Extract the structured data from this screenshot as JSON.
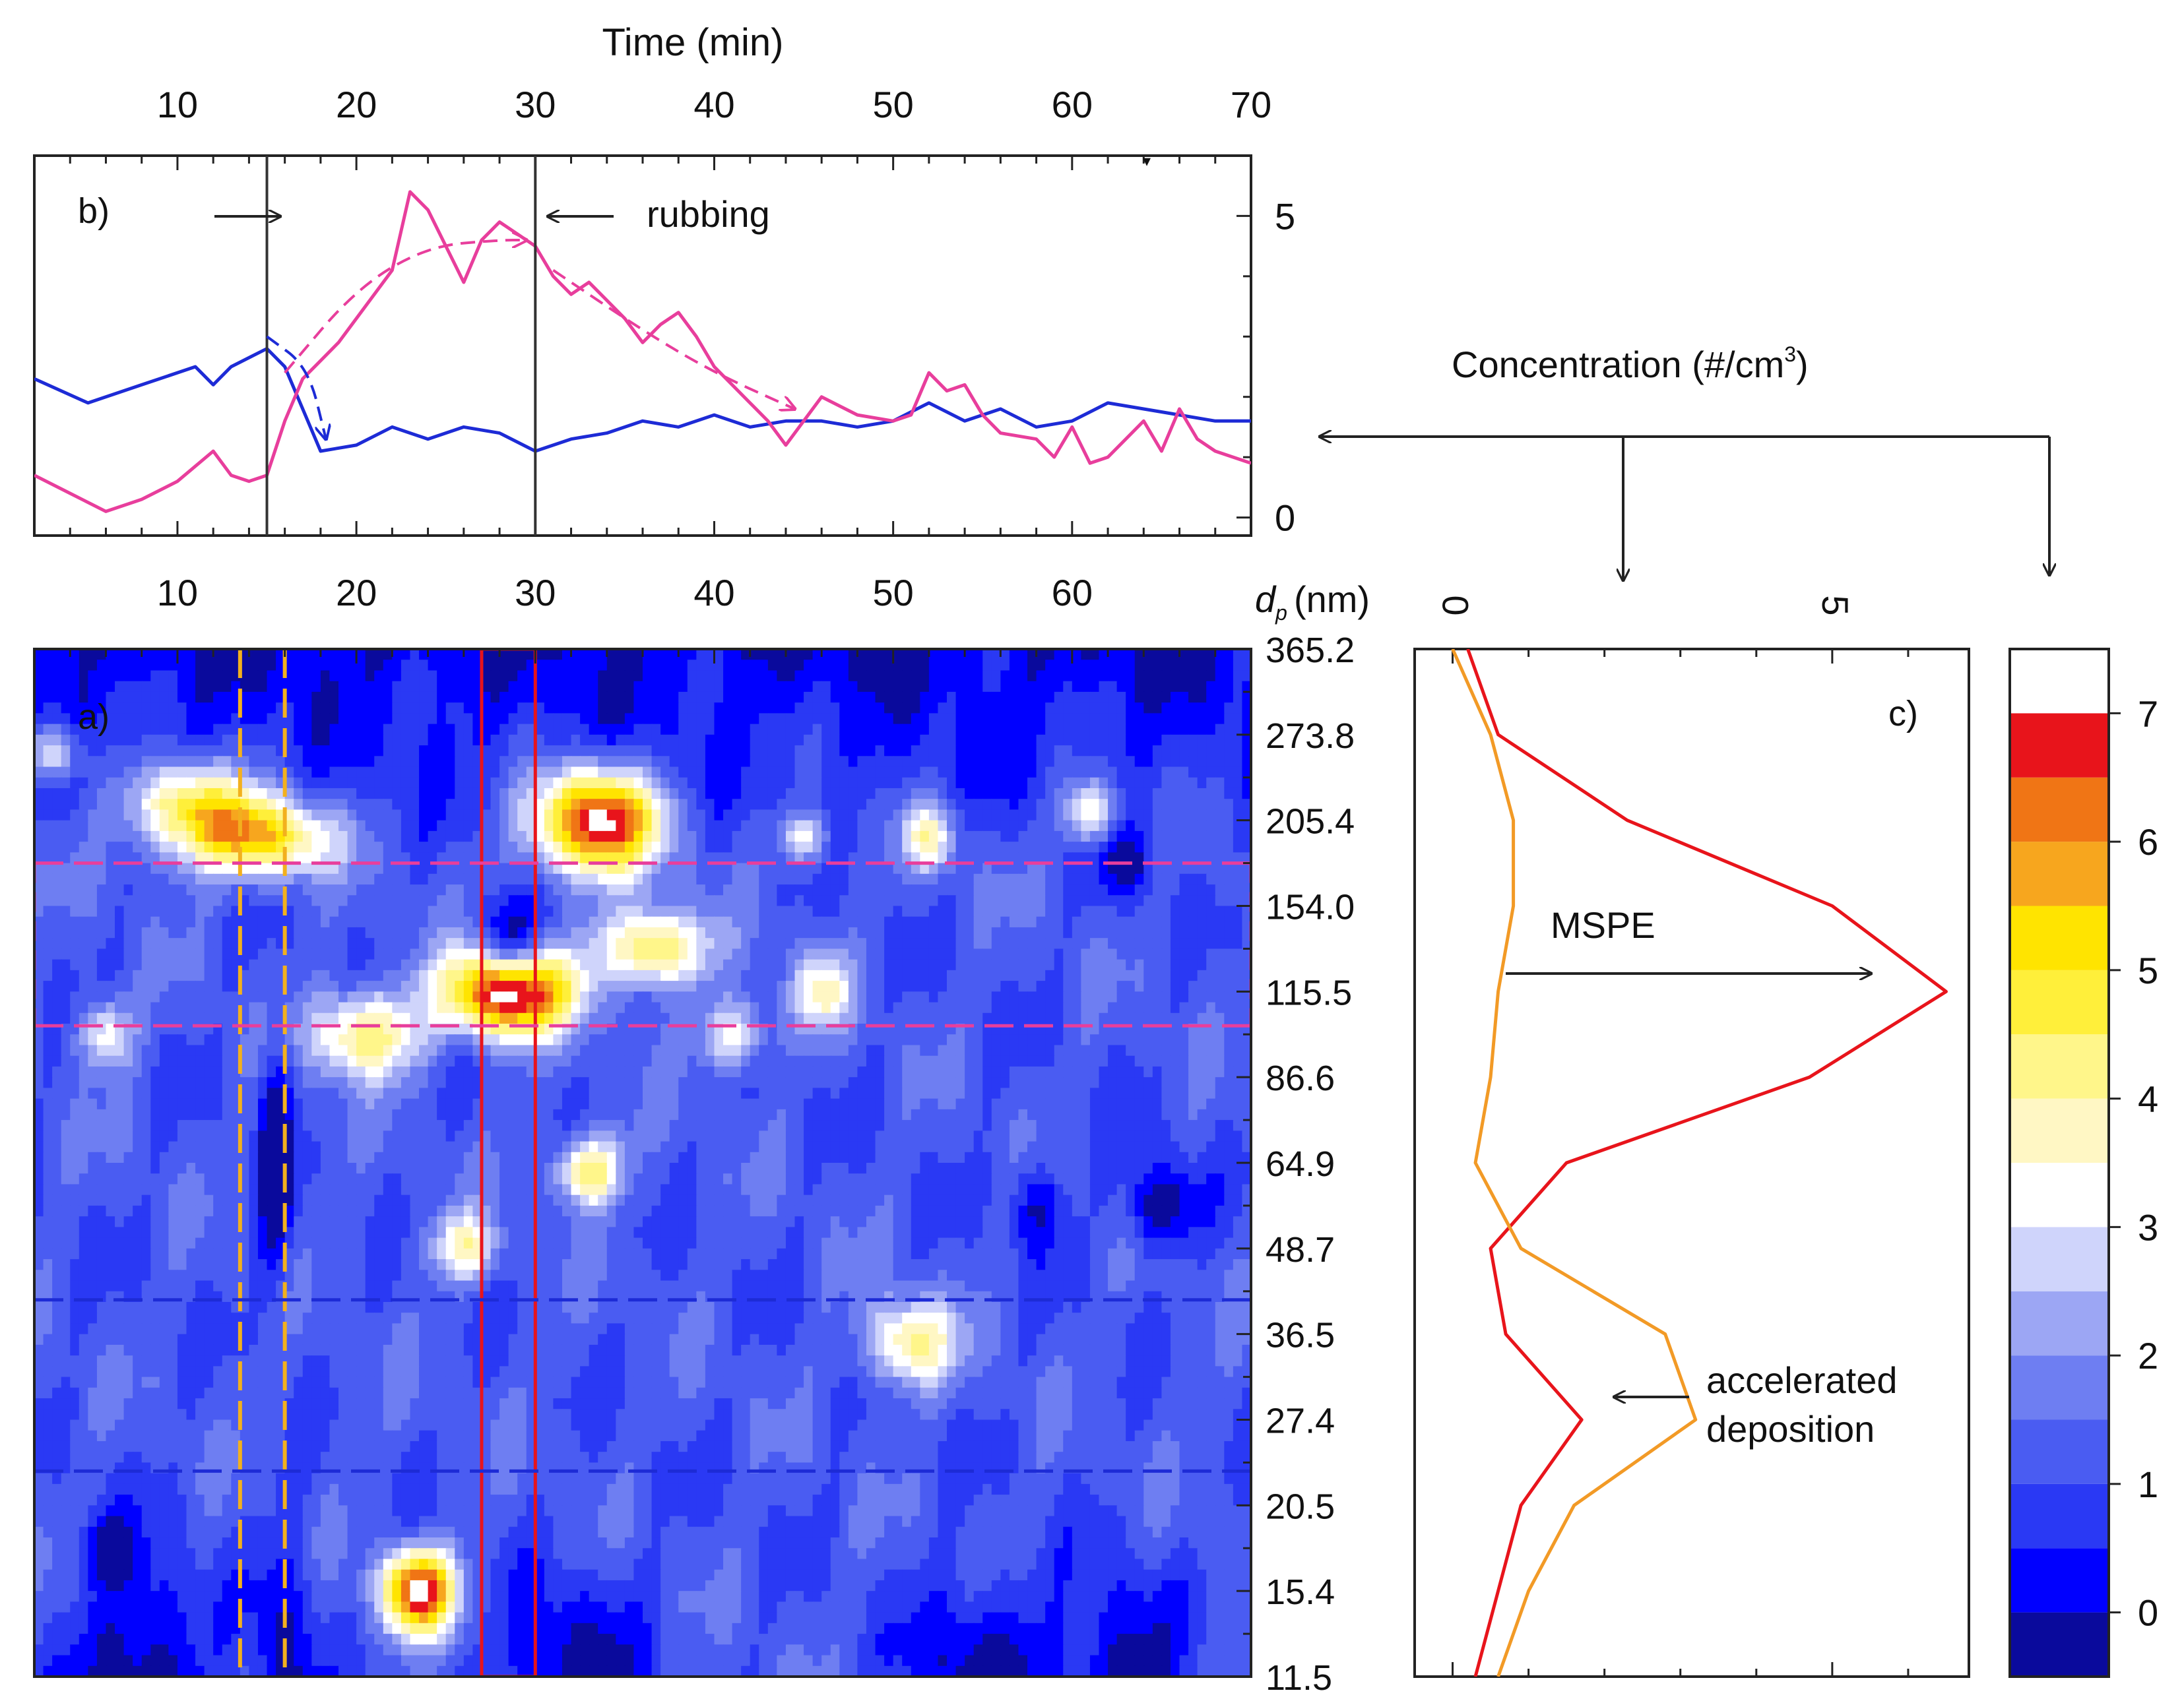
{
  "figure": {
    "top_axis_label": "Time (min)",
    "time_ticks": [
      "10",
      "20",
      "30",
      "40",
      "50",
      "60",
      "70"
    ],
    "dp_label": "d",
    "dp_sub": "p",
    "dp_unit": "(nm)",
    "concentration_label": "Concentration (#/cm",
    "concentration_sup": "3",
    "concentration_close": ")"
  },
  "colors": {
    "pink": "#e83e9c",
    "blue_line": "#1d2bd6",
    "red": "#e8141b",
    "orange": "#f29a26",
    "gold": "#f2b01e"
  },
  "colorbar": {
    "levels": [
      {
        "lo": -0.5,
        "hi": 0,
        "color": "#0a0a9c"
      },
      {
        "lo": 0,
        "hi": 0.5,
        "color": "#0000ff"
      },
      {
        "lo": 0.5,
        "hi": 1,
        "color": "#2a39f4"
      },
      {
        "lo": 1,
        "hi": 1.5,
        "color": "#4a5cf2"
      },
      {
        "lo": 1.5,
        "hi": 2,
        "color": "#6e7ef2"
      },
      {
        "lo": 2,
        "hi": 2.5,
        "color": "#9ca6f4"
      },
      {
        "lo": 2.5,
        "hi": 3,
        "color": "#cfd4fb"
      },
      {
        "lo": 3,
        "hi": 3.5,
        "color": "#ffffff"
      },
      {
        "lo": 3.5,
        "hi": 4,
        "color": "#fff7c4"
      },
      {
        "lo": 4,
        "hi": 4.5,
        "color": "#fff68a"
      },
      {
        "lo": 4.5,
        "hi": 5,
        "color": "#ffef3a"
      },
      {
        "lo": 5,
        "hi": 5.5,
        "color": "#ffe400"
      },
      {
        "lo": 5.5,
        "hi": 6,
        "color": "#f7a61e"
      },
      {
        "lo": 6,
        "hi": 6.5,
        "color": "#f07515"
      },
      {
        "lo": 6.5,
        "hi": 7,
        "color": "#e8141b"
      },
      {
        "lo": 7,
        "hi": 7.5,
        "color": "#ffffff"
      }
    ],
    "tick_labels": [
      "0",
      "1",
      "2",
      "3",
      "4",
      "5",
      "6",
      "7"
    ]
  },
  "chart_data": [
    {
      "type": "line",
      "panel_label": "b)",
      "xlabel": "Time (min)",
      "xlim": [
        2,
        70
      ],
      "ylim": [
        -0.3,
        6
      ],
      "y_ticks": [
        "0",
        "5"
      ],
      "series": [
        {
          "name": "blue",
          "x": [
            2,
            5,
            8,
            11,
            12,
            13,
            15,
            16,
            17,
            18,
            20,
            22,
            24,
            26,
            28,
            30,
            32,
            34,
            36,
            38,
            40,
            42,
            44,
            46,
            48,
            50,
            52,
            54,
            56,
            58,
            60,
            62,
            64,
            66,
            68,
            70
          ],
          "values": [
            2.3,
            1.9,
            2.2,
            2.5,
            2.2,
            2.5,
            2.8,
            2.5,
            1.8,
            1.1,
            1.2,
            1.5,
            1.3,
            1.5,
            1.4,
            1.1,
            1.3,
            1.4,
            1.6,
            1.5,
            1.7,
            1.5,
            1.6,
            1.6,
            1.5,
            1.6,
            1.9,
            1.6,
            1.8,
            1.5,
            1.6,
            1.9,
            1.8,
            1.7,
            1.6,
            1.6
          ]
        },
        {
          "name": "pink",
          "x": [
            2,
            4,
            6,
            8,
            10,
            12,
            13,
            14,
            15,
            16,
            17,
            18,
            19,
            20,
            22,
            23,
            24,
            25,
            26,
            27,
            28,
            29,
            30,
            31,
            32,
            33,
            34,
            35,
            36,
            37,
            38,
            39,
            40,
            41,
            42,
            43,
            44,
            45,
            46,
            48,
            50,
            51,
            52,
            53,
            54,
            55,
            56,
            58,
            59,
            60,
            61,
            62,
            63,
            64,
            65,
            66,
            67,
            68,
            70
          ],
          "values": [
            0.7,
            0.4,
            0.1,
            0.3,
            0.6,
            1.1,
            0.7,
            0.6,
            0.7,
            1.6,
            2.3,
            2.6,
            2.9,
            3.3,
            4.1,
            5.4,
            5.1,
            4.5,
            3.9,
            4.6,
            4.9,
            4.7,
            4.5,
            4.0,
            3.7,
            3.9,
            3.6,
            3.3,
            2.9,
            3.2,
            3.4,
            3.0,
            2.5,
            2.2,
            1.9,
            1.6,
            1.2,
            1.6,
            2.0,
            1.7,
            1.6,
            1.7,
            2.4,
            2.1,
            2.2,
            1.7,
            1.4,
            1.3,
            1.0,
            1.5,
            0.9,
            1.0,
            1.3,
            1.6,
            1.1,
            1.8,
            1.3,
            1.1,
            0.9
          ]
        }
      ],
      "trend_arrows": [
        {
          "color": "pink",
          "x": [
            16,
            20,
            24,
            28,
            29.5
          ],
          "y": [
            2.4,
            3.8,
            4.5,
            4.6,
            4.6
          ]
        },
        {
          "color": "pink",
          "x": [
            31,
            36,
            40,
            44.5
          ],
          "y": [
            4.1,
            3.1,
            2.4,
            1.8
          ]
        },
        {
          "color": "blue",
          "x": [
            15,
            17.3,
            18.3
          ],
          "y": [
            3.0,
            2.5,
            1.3
          ]
        }
      ],
      "vlines": [
        15,
        30
      ],
      "annotations": [
        {
          "text": "rubbing"
        }
      ]
    },
    {
      "type": "heatmap",
      "panel_label": "a)",
      "xlabel": "Time (min)",
      "ylabel": "dp (nm)",
      "xlim": [
        2,
        70
      ],
      "x_ticks": [
        "10",
        "20",
        "30",
        "40",
        "50",
        "60"
      ],
      "y_tick_labels": [
        "365.2",
        "273.8",
        "205.4",
        "154.0",
        "115.5",
        "86.6",
        "64.9",
        "48.7",
        "36.5",
        "27.4",
        "20.5",
        "15.4",
        "11.5"
      ],
      "value_range": [
        -0.5,
        7.5
      ],
      "hotspots": [
        {
          "t": 23.5,
          "level": 11,
          "size": 2,
          "r": 0.48,
          "peak": 6.0
        },
        {
          "t": 28.5,
          "level": 4,
          "size": 3.5,
          "r": 0.5,
          "peak": 6.7
        },
        {
          "t": 33.5,
          "level": 2,
          "size": 3.5,
          "r": 0.6,
          "peak": 6.2
        },
        {
          "t": 36.5,
          "level": 3.5,
          "size": 3,
          "r": 0.45,
          "peak": 3.6
        },
        {
          "t": 14.5,
          "level": 2.2,
          "size": 4,
          "r": 0.45,
          "peak": 4.4
        },
        {
          "t": 10.5,
          "level": 1.8,
          "size": 3.5,
          "r": 0.5,
          "peak": 3.5
        },
        {
          "t": 20.5,
          "level": 4.5,
          "size": 3,
          "r": 0.5,
          "peak": 3.3
        },
        {
          "t": 33,
          "level": 6.1,
          "size": 1.8,
          "r": 0.4,
          "peak": 3.4
        },
        {
          "t": 51,
          "level": 8.1,
          "size": 2.5,
          "r": 0.5,
          "peak": 3.0
        },
        {
          "t": 52,
          "level": 2.2,
          "size": 1.5,
          "r": 0.4,
          "peak": 2.6
        },
        {
          "t": 61,
          "level": 1.9,
          "size": 1.5,
          "r": 0.4,
          "peak": 2.7
        },
        {
          "t": 26,
          "level": 7,
          "size": 1.8,
          "r": 0.4,
          "peak": 2.6
        },
        {
          "t": 41,
          "level": 4.5,
          "size": 1.8,
          "r": 0.4,
          "peak": 2.4
        },
        {
          "t": 3,
          "level": 1.2,
          "size": 1.6,
          "r": 0.35,
          "peak": 2.6
        },
        {
          "t": 6,
          "level": 4.5,
          "size": 1.5,
          "r": 0.4,
          "peak": 2.3
        },
        {
          "t": 46,
          "level": 4,
          "size": 1.6,
          "r": 0.45,
          "peak": 2.4
        },
        {
          "t": 45,
          "level": 2.2,
          "size": 1.4,
          "r": 0.3,
          "peak": 2.2
        },
        {
          "t": 8,
          "level": 12,
          "size": 3.5,
          "r": 1.3,
          "peak": -1.8
        },
        {
          "t": 32,
          "level": 12,
          "size": 4,
          "r": 1.1,
          "peak": -1.5
        },
        {
          "t": 55,
          "level": 12,
          "size": 4,
          "r": 1.1,
          "peak": -1.6
        },
        {
          "t": 63,
          "level": 12,
          "size": 3,
          "r": 1.1,
          "peak": -1.6
        },
        {
          "t": 16,
          "level": 12,
          "size": 1.8,
          "r": 1.6,
          "peak": -1.4
        },
        {
          "t": 28.5,
          "level": 3.5,
          "size": 1.5,
          "r": 0.5,
          "peak": -2.5
        },
        {
          "t": 15.5,
          "level": 6,
          "size": 0.9,
          "r": 1.3,
          "peak": -2.2
        },
        {
          "t": 65,
          "level": 6.5,
          "size": 2,
          "r": 0.5,
          "peak": -1.8
        },
        {
          "t": 58,
          "level": 6.5,
          "size": 1.5,
          "r": 0.5,
          "peak": -1.3
        },
        {
          "t": 63,
          "level": 2.5,
          "size": 1.5,
          "r": 0.4,
          "peak": -1.5
        },
        {
          "t": 6,
          "level": 10.5,
          "size": 1.5,
          "r": 0.4,
          "peak": -1.2
        }
      ],
      "regions": [
        {
          "kind": "time-band",
          "color": "gold",
          "t0": 13.5,
          "t1": 16
        },
        {
          "kind": "time-band",
          "color": "red",
          "t0": 27,
          "t1": 30
        },
        {
          "kind": "size-band",
          "color": "pink",
          "level0": 2.5,
          "level1": 4.4
        },
        {
          "kind": "size-band",
          "color": "blue_line",
          "level0": 7.6,
          "level1": 9.6
        }
      ]
    },
    {
      "type": "line",
      "panel_label": "c)",
      "orientation": "vertical",
      "xlabel": "Concentration (#/cm3)",
      "xlim": [
        -0.5,
        6.8
      ],
      "x_ticks": [
        {
          "value": 0,
          "label": "0"
        },
        {
          "value": 5,
          "label": "5"
        }
      ],
      "levels": [
        0,
        1,
        2,
        3,
        4,
        5,
        6,
        7,
        8,
        9,
        10,
        11,
        12
      ],
      "series": [
        {
          "name": "red",
          "color": "red",
          "values": [
            0.2,
            0.6,
            2.3,
            5.0,
            6.5,
            4.7,
            1.5,
            0.5,
            0.7,
            1.7,
            0.9,
            0.6,
            0.3
          ]
        },
        {
          "name": "orange",
          "color": "orange",
          "values": [
            0.0,
            0.5,
            0.8,
            0.8,
            0.6,
            0.5,
            0.3,
            0.9,
            2.8,
            3.2,
            1.6,
            1.0,
            0.6
          ]
        }
      ],
      "annotations": [
        {
          "text": "MSPE"
        },
        {
          "text": "accelerated"
        },
        {
          "text": "deposition"
        }
      ]
    }
  ]
}
